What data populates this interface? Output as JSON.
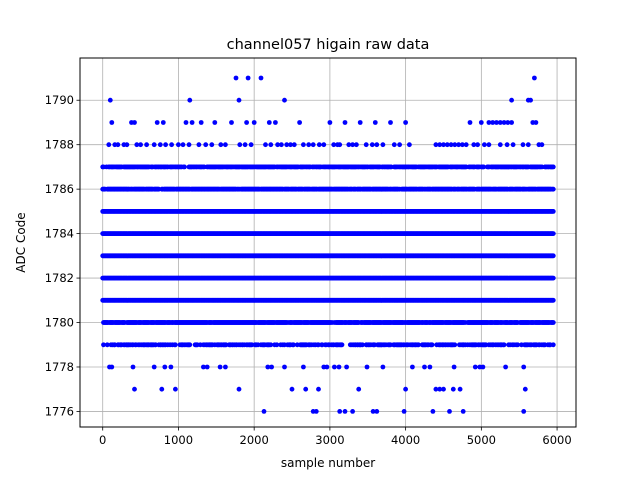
{
  "chart_data": {
    "type": "scatter",
    "title": "channel057 higain raw data",
    "xlabel": "sample number",
    "ylabel": "ADC Code",
    "xlim": [
      -300,
      6250
    ],
    "ylim": [
      1775.3,
      1791.9
    ],
    "xticks": [
      0,
      1000,
      2000,
      3000,
      4000,
      5000,
      6000
    ],
    "yticks": [
      1776,
      1778,
      1780,
      1782,
      1784,
      1786,
      1788,
      1790
    ],
    "grid": true,
    "marker_color": "#0000ff",
    "num_samples": 5950,
    "levels": [
      {
        "y": 1791,
        "x": [
          1760,
          1920,
          2090,
          5700
        ]
      },
      {
        "y": 1790,
        "x": [
          100,
          1150,
          1800,
          2400,
          5400,
          5620,
          5650
        ]
      },
      {
        "y": 1789,
        "x": [
          120,
          380,
          420,
          720,
          800,
          1100,
          1180,
          1300,
          1480,
          1700,
          1900,
          2000,
          2200,
          2280,
          2600,
          3000,
          3200,
          3400,
          3600,
          3800,
          4000,
          4850,
          5000,
          5100,
          5150,
          5200,
          5250,
          5300,
          5350,
          5400,
          5680,
          5720
        ]
      },
      {
        "y": 1788,
        "x": [
          80,
          160,
          200,
          280,
          320,
          450,
          500,
          580,
          680,
          760,
          830,
          910,
          1000,
          1060,
          1140,
          1270,
          1360,
          1440,
          1560,
          1620,
          1810,
          1880,
          1960,
          2150,
          2220,
          2310,
          2360,
          2430,
          2480,
          2530,
          2650,
          2720,
          2780,
          2860,
          2920,
          3050,
          3100,
          3130,
          3250,
          3300,
          3350,
          3480,
          3560,
          3620,
          3700,
          3850,
          3920,
          4050,
          4400,
          4450,
          4500,
          4550,
          4600,
          4650,
          4700,
          4750,
          4800,
          4900,
          4950,
          5040,
          5100,
          5250,
          5340,
          5420,
          5550,
          5620,
          5760,
          5800
        ]
      },
      {
        "y": 1776,
        "x": [
          2130,
          2780,
          2820,
          3130,
          3200,
          3300,
          3570,
          3620,
          3980,
          4360,
          4580,
          4760,
          5560
        ]
      },
      {
        "y": 1777,
        "x": [
          420,
          780,
          960,
          1800,
          2500,
          2680,
          2850,
          3380,
          4000,
          4400,
          4450,
          4500,
          4630,
          4720,
          5580
        ]
      },
      {
        "y": 1778,
        "x": [
          90,
          120,
          400,
          680,
          820,
          900,
          1330,
          1380,
          1550,
          1620,
          2180,
          2230,
          2400,
          2650,
          2920,
          2960,
          3060,
          3120,
          3220,
          3490,
          3700,
          4090,
          4250,
          4320,
          4640,
          4920,
          4980,
          5020,
          5320,
          5560
        ]
      }
    ]
  }
}
